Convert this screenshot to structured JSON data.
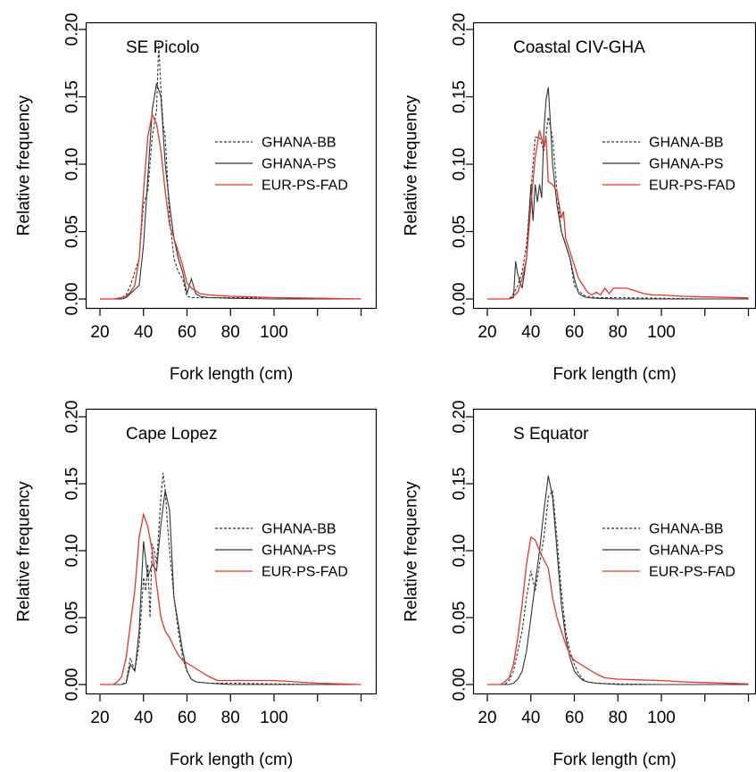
{
  "colors": {
    "ghana_bb": "#333333",
    "ghana_ps": "#333333",
    "eur_ps_fad": "#e8342b",
    "axis": "#000000"
  },
  "chart_data": [
    {
      "type": "line",
      "title": "SE Picolo",
      "xlabel": "Fork length (cm)",
      "ylabel": "Relative frequency",
      "xlim": [
        16,
        140
      ],
      "ylim": [
        0,
        0.2
      ],
      "xticks": [
        20,
        40,
        60,
        80,
        100
      ],
      "yticks": [
        "0.00",
        "0.05",
        "0.10",
        "0.15",
        "0.20"
      ],
      "legend": "right",
      "series": [
        {
          "name": "GHANA-BB",
          "style": "dashed",
          "x": [
            20,
            26,
            30,
            32,
            34,
            36,
            38,
            40,
            42,
            44,
            46,
            47,
            48,
            49,
            50,
            52,
            54,
            56,
            58,
            60,
            62,
            64,
            66,
            70,
            80,
            100,
            120,
            140
          ],
          "y": [
            0,
            0,
            0.001,
            0.003,
            0.01,
            0.02,
            0.03,
            0.07,
            0.08,
            0.12,
            0.14,
            0.19,
            0.155,
            0.13,
            0.12,
            0.06,
            0.03,
            0.02,
            0.015,
            0.002,
            0.001,
            0.001,
            0.001,
            0.001,
            0.001,
            0.001,
            0.0005,
            0
          ]
        },
        {
          "name": "GHANA-PS",
          "style": "solid",
          "x": [
            20,
            26,
            30,
            32,
            34,
            36,
            38,
            40,
            42,
            44,
            46,
            48,
            50,
            52,
            54,
            56,
            58,
            60,
            62,
            64,
            66,
            70,
            80,
            100,
            120,
            140
          ],
          "y": [
            0,
            0,
            0,
            0.001,
            0.004,
            0.007,
            0.01,
            0.04,
            0.09,
            0.14,
            0.16,
            0.15,
            0.1,
            0.07,
            0.045,
            0.03,
            0.02,
            0.004,
            0.015,
            0.004,
            0.002,
            0.001,
            0.0005,
            0,
            0,
            0
          ]
        },
        {
          "name": "EUR-PS-FAD",
          "style": "solid",
          "x": [
            20,
            26,
            30,
            32,
            34,
            36,
            38,
            40,
            42,
            44,
            46,
            48,
            50,
            52,
            54,
            56,
            58,
            60,
            62,
            64,
            66,
            70,
            80,
            90,
            100,
            120,
            140
          ],
          "y": [
            0,
            0,
            0.001,
            0.002,
            0.005,
            0.01,
            0.03,
            0.08,
            0.12,
            0.137,
            0.13,
            0.11,
            0.08,
            0.055,
            0.045,
            0.035,
            0.025,
            0.012,
            0.008,
            0.006,
            0.004,
            0.003,
            0.002,
            0.0015,
            0.001,
            0.0005,
            0
          ]
        }
      ]
    },
    {
      "type": "line",
      "title": "Coastal CIV-GHA",
      "xlabel": "Fork length (cm)",
      "ylabel": "Relative frequency",
      "xlim": [
        16,
        140
      ],
      "ylim": [
        0,
        0.2
      ],
      "xticks": [
        20,
        40,
        60,
        80,
        100
      ],
      "yticks": [
        "0.00",
        "0.05",
        "0.10",
        "0.15",
        "0.20"
      ],
      "legend": "right",
      "series": [
        {
          "name": "GHANA-BB",
          "style": "dashed",
          "x": [
            20,
            30,
            32,
            34,
            36,
            38,
            40,
            42,
            44,
            46,
            48,
            50,
            52,
            54,
            56,
            58,
            60,
            62,
            64,
            66,
            70,
            80,
            100,
            120,
            140
          ],
          "y": [
            0,
            0,
            0.004,
            0.01,
            0.02,
            0.04,
            0.08,
            0.12,
            0.12,
            0.11,
            0.135,
            0.12,
            0.08,
            0.05,
            0.04,
            0.03,
            0.01,
            0.006,
            0.003,
            0.002,
            0.001,
            0.001,
            0.0005,
            0,
            0
          ]
        },
        {
          "name": "GHANA-PS",
          "style": "solid",
          "x": [
            20,
            30,
            32,
            33,
            34,
            36,
            38,
            40,
            41,
            42,
            43,
            44,
            45,
            46,
            47,
            48,
            49,
            50,
            52,
            54,
            56,
            58,
            60,
            62,
            64,
            66,
            70,
            80,
            100,
            120,
            140
          ],
          "y": [
            0,
            0,
            0.001,
            0.028,
            0.018,
            0.008,
            0.03,
            0.085,
            0.058,
            0.085,
            0.072,
            0.085,
            0.075,
            0.125,
            0.148,
            0.157,
            0.13,
            0.1,
            0.07,
            0.05,
            0.04,
            0.03,
            0.015,
            0.004,
            0.002,
            0.001,
            0.0005,
            0,
            0,
            0,
            0
          ]
        },
        {
          "name": "EUR-PS-FAD",
          "style": "solid",
          "x": [
            20,
            30,
            32,
            34,
            36,
            38,
            40,
            42,
            44,
            46,
            47,
            48,
            50,
            52,
            54,
            55,
            56,
            58,
            60,
            62,
            64,
            66,
            68,
            70,
            72,
            74,
            76,
            78,
            80,
            84,
            88,
            92,
            96,
            100,
            110,
            120,
            140
          ],
          "y": [
            0,
            0,
            0.002,
            0.005,
            0.015,
            0.03,
            0.07,
            0.105,
            0.125,
            0.113,
            0.12,
            0.087,
            0.085,
            0.08,
            0.06,
            0.065,
            0.045,
            0.035,
            0.025,
            0.015,
            0.01,
            0.005,
            0.003,
            0.005,
            0.003,
            0.008,
            0.004,
            0.008,
            0.008,
            0.008,
            0.006,
            0.004,
            0.003,
            0.003,
            0.002,
            0.0015,
            0.0008
          ]
        }
      ]
    },
    {
      "type": "line",
      "title": "Cape Lopez",
      "xlabel": "Fork length (cm)",
      "ylabel": "Relative frequency",
      "xlim": [
        16,
        140
      ],
      "ylim": [
        0,
        0.2
      ],
      "xticks": [
        20,
        40,
        60,
        80,
        100
      ],
      "yticks": [
        "0.00",
        "0.05",
        "0.10",
        "0.15",
        "0.20"
      ],
      "legend": "right",
      "series": [
        {
          "name": "GHANA-BB",
          "style": "dashed",
          "x": [
            20,
            30,
            32,
            34,
            36,
            38,
            40,
            41,
            42,
            43,
            44,
            45,
            46,
            48,
            49,
            50,
            51,
            52,
            54,
            56,
            58,
            60,
            62,
            64,
            70,
            80,
            100,
            120,
            140
          ],
          "y": [
            0,
            0,
            0.002,
            0.02,
            0.01,
            0.03,
            0.08,
            0.07,
            0.09,
            0.05,
            0.105,
            0.1,
            0.09,
            0.14,
            0.158,
            0.145,
            0.12,
            0.1,
            0.065,
            0.04,
            0.02,
            0.01,
            0.004,
            0.002,
            0.001,
            0.001,
            0.0005,
            0,
            0
          ]
        },
        {
          "name": "GHANA-PS",
          "style": "solid",
          "x": [
            20,
            30,
            32,
            34,
            36,
            38,
            40,
            42,
            44,
            46,
            48,
            50,
            52,
            54,
            56,
            58,
            60,
            62,
            64,
            70,
            80,
            100,
            120,
            140
          ],
          "y": [
            0,
            0,
            0.001,
            0.015,
            0.01,
            0.04,
            0.107,
            0.08,
            0.09,
            0.085,
            0.12,
            0.145,
            0.13,
            0.065,
            0.045,
            0.025,
            0.01,
            0.004,
            0.002,
            0.001,
            0,
            0,
            0,
            0
          ]
        },
        {
          "name": "EUR-PS-FAD",
          "style": "solid",
          "x": [
            20,
            26,
            28,
            30,
            32,
            34,
            36,
            38,
            40,
            42,
            44,
            46,
            48,
            50,
            52,
            54,
            56,
            58,
            60,
            62,
            64,
            66,
            70,
            74,
            80,
            90,
            100,
            110,
            120,
            140
          ],
          "y": [
            0,
            0,
            0.002,
            0.006,
            0.02,
            0.045,
            0.07,
            0.11,
            0.127,
            0.118,
            0.1,
            0.075,
            0.05,
            0.04,
            0.035,
            0.028,
            0.022,
            0.018,
            0.016,
            0.014,
            0.012,
            0.01,
            0.006,
            0.003,
            0.003,
            0.003,
            0.003,
            0.002,
            0.001,
            0
          ]
        }
      ]
    },
    {
      "type": "line",
      "title": "S Equator",
      "xlabel": "Fork length (cm)",
      "ylabel": "Relative frequency",
      "xlim": [
        16,
        140
      ],
      "ylim": [
        0,
        0.2
      ],
      "xticks": [
        20,
        40,
        60,
        80,
        100
      ],
      "yticks": [
        "0.00",
        "0.05",
        "0.10",
        "0.15",
        "0.20"
      ],
      "legend": "right",
      "series": [
        {
          "name": "GHANA-BB",
          "style": "dashed",
          "x": [
            20,
            28,
            30,
            32,
            34,
            36,
            38,
            40,
            42,
            44,
            46,
            48,
            50,
            52,
            54,
            56,
            58,
            60,
            62,
            64,
            66,
            70,
            80,
            100,
            120,
            140
          ],
          "y": [
            0,
            0,
            0.003,
            0.01,
            0.025,
            0.04,
            0.065,
            0.085,
            0.07,
            0.09,
            0.11,
            0.14,
            0.145,
            0.11,
            0.07,
            0.04,
            0.025,
            0.015,
            0.008,
            0.004,
            0.002,
            0.001,
            0.0005,
            0,
            0,
            0
          ]
        },
        {
          "name": "GHANA-PS",
          "style": "solid",
          "x": [
            20,
            30,
            32,
            34,
            36,
            38,
            40,
            42,
            44,
            46,
            48,
            50,
            52,
            54,
            56,
            58,
            60,
            62,
            64,
            66,
            70,
            80,
            100,
            120,
            140
          ],
          "y": [
            0,
            0,
            0.001,
            0.004,
            0.01,
            0.025,
            0.05,
            0.075,
            0.1,
            0.13,
            0.156,
            0.14,
            0.1,
            0.06,
            0.035,
            0.02,
            0.01,
            0.006,
            0.003,
            0.002,
            0.001,
            0,
            0,
            0,
            0
          ]
        },
        {
          "name": "EUR-PS-FAD",
          "style": "solid",
          "x": [
            20,
            26,
            28,
            30,
            32,
            34,
            36,
            38,
            40,
            42,
            44,
            46,
            48,
            50,
            52,
            54,
            56,
            58,
            60,
            62,
            64,
            66,
            68,
            70,
            74,
            80,
            90,
            100,
            110,
            120,
            140
          ],
          "y": [
            0,
            0,
            0.002,
            0.005,
            0.015,
            0.035,
            0.06,
            0.09,
            0.11,
            0.108,
            0.1,
            0.093,
            0.087,
            0.065,
            0.05,
            0.04,
            0.03,
            0.022,
            0.018,
            0.016,
            0.014,
            0.012,
            0.01,
            0.008,
            0.005,
            0.004,
            0.0035,
            0.003,
            0.002,
            0.0015,
            0.0005
          ]
        }
      ]
    }
  ]
}
